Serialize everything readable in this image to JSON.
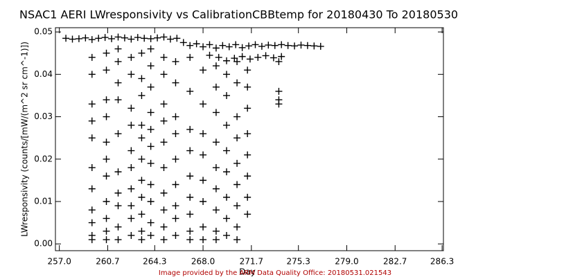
{
  "chart_data": {
    "type": "scatter",
    "title": "NSAC1 AERI LWresponsivity vs CalibrationCBBtemp for 20180430 To 20180530",
    "x_label": "Day",
    "y_label": "LWresponsivity (counts/[mW/(m^2 sr cm^-1)])",
    "footer": "Image provided by the ARM Data Quality Office: 20180531.021543",
    "color": "#000000",
    "xlim": [
      256.7,
      286.4
    ],
    "ylim": [
      -0.0016,
      0.051
    ],
    "xticks": [
      {
        "value": 257,
        "label": "257.0"
      },
      260.7,
      264.3,
      {
        "value": 268,
        "label": "268.0"
      },
      271.7,
      275.3,
      {
        "value": 279,
        "label": "279.0"
      },
      282.7,
      286.3
    ],
    "yticks": [
      {
        "value": 0,
        "label": "0.00"
      },
      0.01,
      0.02,
      0.03,
      0.04,
      0.05
    ],
    "x": [
      257.5,
      258.0,
      258.5,
      259.0,
      259.5,
      260.0,
      260.5,
      261.0,
      261.5,
      262.0,
      262.5,
      263.0,
      263.5,
      264.0,
      264.5,
      265.0,
      265.5,
      266.0,
      266.5,
      267.0,
      267.5,
      268.0,
      268.5,
      269.0,
      269.5,
      270.0,
      270.5,
      271.0,
      271.5,
      272.0,
      272.5,
      273.0,
      273.5,
      274.0,
      274.5,
      275.0,
      275.5,
      276.0,
      276.5,
      277.0,
      268.5,
      269.2,
      269.8,
      270.4,
      271.0,
      271.6,
      272.2,
      272.8,
      273.4,
      274.0,
      259.5,
      259.5,
      259.5,
      259.5,
      259.5,
      259.5,
      259.5,
      259.5,
      259.5,
      259.5,
      259.5,
      260.6,
      260.6,
      260.6,
      260.6,
      260.6,
      260.6,
      260.6,
      260.6,
      260.6,
      260.6,
      260.6,
      261.5,
      261.5,
      261.5,
      261.5,
      261.5,
      261.5,
      261.5,
      261.5,
      261.5,
      261.5,
      262.5,
      262.5,
      262.5,
      262.5,
      262.5,
      262.5,
      262.5,
      262.5,
      262.5,
      262.5,
      263.3,
      263.3,
      263.3,
      263.3,
      263.3,
      263.3,
      263.3,
      263.3,
      263.3,
      263.3,
      263.3,
      264.0,
      264.0,
      264.0,
      264.0,
      264.0,
      264.0,
      264.0,
      264.0,
      264.0,
      264.0,
      264.0,
      265.0,
      265.0,
      265.0,
      265.0,
      265.0,
      265.0,
      265.0,
      265.0,
      265.0,
      265.0,
      265.9,
      265.9,
      265.9,
      265.9,
      265.9,
      265.9,
      265.9,
      265.9,
      265.9,
      267.0,
      267.0,
      267.0,
      267.0,
      267.0,
      267.0,
      267.0,
      267.0,
      267.0,
      268.0,
      268.0,
      268.0,
      268.0,
      268.0,
      268.0,
      268.0,
      268.0,
      269.0,
      269.0,
      269.0,
      269.0,
      269.0,
      269.0,
      269.0,
      269.0,
      269.0,
      269.8,
      269.8,
      269.8,
      269.8,
      269.8,
      269.8,
      269.8,
      269.8,
      270.6,
      270.6,
      270.6,
      270.6,
      270.6,
      270.6,
      270.6,
      270.6,
      270.6,
      271.4,
      271.4,
      271.4,
      271.4,
      271.4,
      271.4,
      271.4,
      271.4,
      273.8,
      273.8,
      273.8,
      273.8
    ],
    "values": [
      0.0485,
      0.0483,
      0.0484,
      0.0486,
      0.0482,
      0.0485,
      0.0487,
      0.0484,
      0.0488,
      0.0486,
      0.0483,
      0.0487,
      0.0485,
      0.0484,
      0.0486,
      0.0488,
      0.0483,
      0.0485,
      0.0475,
      0.0468,
      0.0472,
      0.0465,
      0.047,
      0.0462,
      0.0468,
      0.0465,
      0.047,
      0.0463,
      0.0467,
      0.047,
      0.0466,
      0.0469,
      0.0468,
      0.047,
      0.0468,
      0.0467,
      0.0469,
      0.0468,
      0.0467,
      0.0466,
      0.0445,
      0.044,
      0.0432,
      0.0438,
      0.0442,
      0.0436,
      0.044,
      0.0444,
      0.0439,
      0.0442,
      0.044,
      0.04,
      0.033,
      0.029,
      0.025,
      0.018,
      0.013,
      0.008,
      0.005,
      0.002,
      0.001,
      0.045,
      0.041,
      0.034,
      0.03,
      0.024,
      0.02,
      0.016,
      0.01,
      0.006,
      0.003,
      0.001,
      0.046,
      0.043,
      0.038,
      0.034,
      0.026,
      0.017,
      0.012,
      0.009,
      0.004,
      0.001,
      0.044,
      0.04,
      0.032,
      0.028,
      0.022,
      0.018,
      0.013,
      0.009,
      0.006,
      0.002,
      0.045,
      0.039,
      0.035,
      0.028,
      0.025,
      0.02,
      0.015,
      0.011,
      0.007,
      0.003,
      0.001,
      0.046,
      0.042,
      0.037,
      0.031,
      0.027,
      0.023,
      0.019,
      0.014,
      0.01,
      0.005,
      0.002,
      0.044,
      0.04,
      0.033,
      0.029,
      0.024,
      0.018,
      0.012,
      0.008,
      0.004,
      0.001,
      0.043,
      0.038,
      0.03,
      0.026,
      0.02,
      0.014,
      0.009,
      0.006,
      0.002,
      0.044,
      0.036,
      0.027,
      0.022,
      0.016,
      0.011,
      0.007,
      0.003,
      0.001,
      0.041,
      0.033,
      0.026,
      0.021,
      0.015,
      0.01,
      0.004,
      0.001,
      0.042,
      0.037,
      0.031,
      0.024,
      0.018,
      0.013,
      0.008,
      0.003,
      0.001,
      0.04,
      0.035,
      0.028,
      0.022,
      0.017,
      0.011,
      0.006,
      0.002,
      0.043,
      0.038,
      0.03,
      0.025,
      0.019,
      0.014,
      0.009,
      0.004,
      0.001,
      0.041,
      0.037,
      0.032,
      0.026,
      0.021,
      0.016,
      0.011,
      0.007,
      0.043,
      0.036,
      0.034,
      0.033
    ]
  }
}
